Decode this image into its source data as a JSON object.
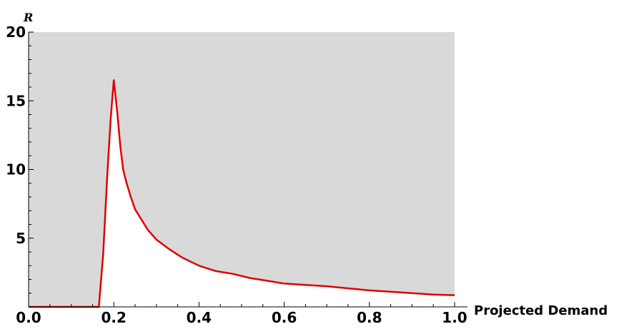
{
  "chart_data": {
    "type": "area",
    "xlabel": "Projected Demand",
    "ylabel": "R",
    "xlim": [
      0.0,
      1.0
    ],
    "ylim": [
      0,
      20
    ],
    "x_ticks": [
      "0.0",
      "0.2",
      "0.4",
      "0.6",
      "0.8",
      "1.0"
    ],
    "y_ticks": [
      "5",
      "10",
      "15",
      "20"
    ],
    "grid": false,
    "legend": "none",
    "series": [
      {
        "x": [
          0.0,
          0.165,
          0.175,
          0.185,
          0.193,
          0.2,
          0.208,
          0.215,
          0.222,
          0.23,
          0.24,
          0.25,
          0.26,
          0.28,
          0.3,
          0.33,
          0.36,
          0.4,
          0.44,
          0.48,
          0.52,
          0.56,
          0.6,
          0.65,
          0.7,
          0.75,
          0.8,
          0.85,
          0.9,
          0.95,
          1.0
        ],
        "y": [
          0.0,
          0.0,
          3.8,
          9.8,
          13.8,
          16.5,
          14.2,
          11.8,
          10.0,
          9.0,
          8.0,
          7.1,
          6.6,
          5.6,
          4.9,
          4.2,
          3.6,
          3.0,
          2.6,
          2.4,
          2.1,
          1.9,
          1.7,
          1.6,
          1.5,
          1.35,
          1.2,
          1.1,
          1.0,
          0.9,
          0.85
        ]
      }
    ],
    "colors": {
      "line": "#e00000",
      "shaded_region": "#d9d9d9",
      "below_curve": "#ffffff"
    }
  }
}
